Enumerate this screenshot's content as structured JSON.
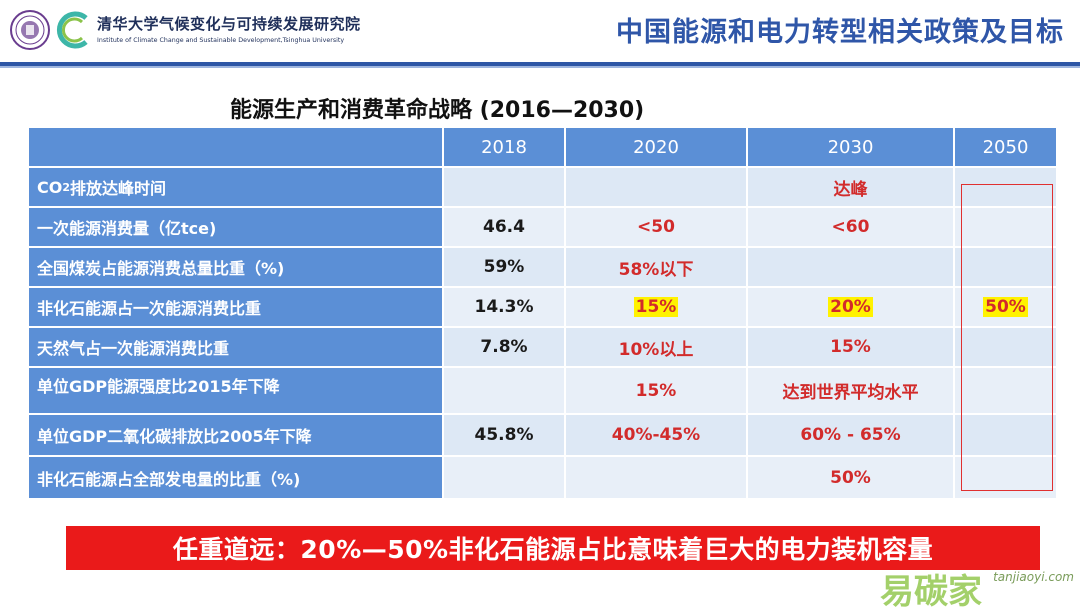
{
  "header": {
    "institute_cn": "清华大学气候变化与可持续发展研究院",
    "institute_en": "Institute of Climate Change and Sustainable Development,Tsinghua University",
    "slide_title": "中国能源和电力转型相关政策及目标"
  },
  "table": {
    "title": "能源生产和消费革命战略   (2016—2030)",
    "columns": [
      "",
      "2018",
      "2020",
      "2030",
      "2050"
    ],
    "rows": [
      {
        "label_main": "CO",
        "label_sub": "2",
        "label_rest": "排放达峰时间",
        "v2018": "",
        "v2020": "",
        "v2030": "达峰",
        "v2050": ""
      },
      {
        "label": "一次能源消费量（亿tce)",
        "v2018": "46.4",
        "v2020": "<50",
        "v2030": "<60",
        "v2050": ""
      },
      {
        "label": "全国煤炭占能源消费总量比重（%)",
        "v2018": "59%",
        "v2020": "58%以下",
        "v2030": "",
        "v2050": ""
      },
      {
        "label": "非化石能源占一次能源消费比重",
        "v2018": "14.3%",
        "v2020": "15%",
        "v2030": "20%",
        "v2050": "50%"
      },
      {
        "label": "天然气占一次能源消费比重",
        "v2018": "7.8%",
        "v2020": "10%以上",
        "v2030": "15%",
        "v2050": ""
      },
      {
        "label": "单位GDP能源强度比2015年下降",
        "v2018": "",
        "v2020": "15%",
        "v2030": "达到世界平均水平",
        "v2050": ""
      },
      {
        "label": "单位GDP二氧化碳排放比2005年下降",
        "v2018": "45.8%",
        "v2020": "40%-45%",
        "v2030": "60% - 65%",
        "v2050": ""
      },
      {
        "label": "非化石能源占全部发电量的比重（%)",
        "v2018": "",
        "v2020": "",
        "v2030": "50%",
        "v2050": ""
      }
    ]
  },
  "banner": {
    "text": "任重道远：20%—50%非化石能源占比意味着巨大的电力装机容量"
  },
  "watermark": {
    "cn": "易碳家",
    "en": "tanjiaoyi.com"
  },
  "colors": {
    "header_blue": "#2f56a8",
    "table_header": "#5b8fd6",
    "cell_fill": "#dde8f5",
    "value_red": "#d22b2b",
    "highlight": "#fff200",
    "banner_red": "#ea1a1a"
  }
}
